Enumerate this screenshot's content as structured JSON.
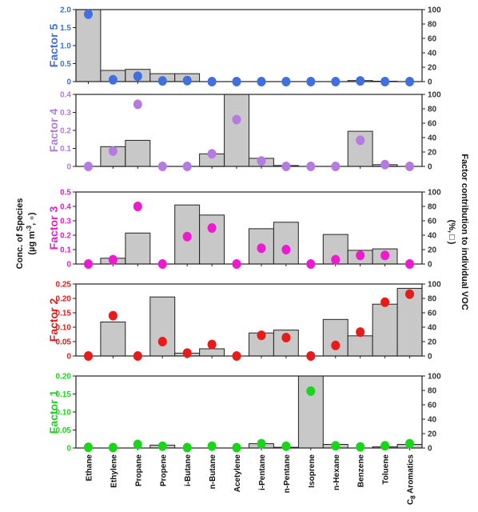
{
  "chart_data": {
    "type": "bar",
    "categories": [
      "Ethane",
      "Ethylene",
      "Propane",
      "Propene",
      "i-Butane",
      "n-Butane",
      "Acetylene",
      "i-Pentane",
      "n-Pentane",
      "Isoprene",
      "n-Hexane",
      "Benzene",
      "Toluene",
      "C8 Aromatics"
    ],
    "category_labels": [
      "Ethane",
      "Ethylene",
      "Propane",
      "Propene",
      "i-Butane",
      "n-Butane",
      "Acetylene",
      "i-Pentane",
      "n-Pentane",
      "Isoprene",
      "n-Hexane",
      "Benzene",
      "Toluene",
      "C"
    ],
    "c8_subscript": "8",
    "c8_rest": " Aromatics",
    "left_axis_title": "Conc. of Species",
    "left_axis_title_units": "(µg m",
    "left_axis_title_units_sup": "-3",
    "left_axis_title_units_rest": ", ",
    "left_axis_title_units_close": ")",
    "right_axis_title": "Factor contribution to individual VOC",
    "right_axis_title_units": "(%,",
    "right_axis_title_units_close": ")",
    "panels": [
      {
        "name": "Factor 5",
        "color": "#3f6fe0",
        "left_ylim": [
          0,
          2.0
        ],
        "left_ticks": [
          "0",
          "0.5",
          "1.0",
          "1.5",
          "2.0"
        ],
        "left_tick_values": [
          0,
          0.5,
          1.0,
          1.5,
          2.0
        ],
        "right_ticks": [
          "0",
          "20",
          "40",
          "60",
          "80",
          "100"
        ],
        "bars": [
          2.0,
          0.31,
          0.34,
          0.22,
          0.22,
          0,
          0,
          0,
          0,
          0,
          0,
          0.03,
          0.01,
          0
        ],
        "points": [
          1.87,
          0.05,
          0.15,
          0.02,
          0.03,
          0,
          0,
          0,
          0,
          0,
          0,
          0.02,
          0,
          0
        ]
      },
      {
        "name": "Factor 4",
        "color": "#b57be0",
        "left_ylim": [
          0,
          0.4
        ],
        "left_ticks": [
          "0",
          "0.1",
          "0.2",
          "0.3",
          "0.4"
        ],
        "left_tick_values": [
          0,
          0.1,
          0.2,
          0.3,
          0.4
        ],
        "right_ticks": [
          "0",
          "20",
          "40",
          "60",
          "80",
          "100"
        ],
        "bars": [
          0,
          0.11,
          0.145,
          0,
          0,
          0.07,
          0.4,
          0.045,
          0.005,
          0,
          0,
          0.195,
          0.01,
          0
        ],
        "points": [
          0,
          0.085,
          0.345,
          0,
          0,
          0.07,
          0.26,
          0.03,
          0,
          0,
          0,
          0.145,
          0.01,
          0
        ]
      },
      {
        "name": "Factor 3",
        "color": "#ee1ad0",
        "left_ylim": [
          0,
          0.5
        ],
        "left_ticks": [
          "0",
          "0.1",
          "0.2",
          "0.3",
          "0.4",
          "0.5"
        ],
        "left_tick_values": [
          0,
          0.1,
          0.2,
          0.3,
          0.4,
          0.5
        ],
        "right_ticks": [
          "0",
          "20",
          "40",
          "60",
          "80",
          "100"
        ],
        "bars": [
          0,
          0.04,
          0.215,
          0,
          0.41,
          0.34,
          0,
          0.245,
          0.29,
          0,
          0.205,
          0.095,
          0.105,
          0
        ],
        "points": [
          0,
          0.03,
          0.4,
          0,
          0.19,
          0.25,
          0,
          0.11,
          0.1,
          0,
          0.03,
          0.06,
          0.06,
          0
        ]
      },
      {
        "name": "Factor 2",
        "color": "#e81a1a",
        "left_ylim": [
          0,
          0.25
        ],
        "left_ticks": [
          "0",
          "0.05",
          "0.10",
          "0.15",
          "0.20",
          "0.25"
        ],
        "left_tick_values": [
          0,
          0.05,
          0.1,
          0.15,
          0.2,
          0.25
        ],
        "right_ticks": [
          "0",
          "20",
          "40",
          "60",
          "80",
          "100"
        ],
        "bars": [
          0,
          0.118,
          0,
          0.205,
          0.01,
          0.025,
          0,
          0.08,
          0.09,
          0,
          0.127,
          0.07,
          0.18,
          0.235
        ],
        "points": [
          0,
          0.14,
          0,
          0.05,
          0.01,
          0.04,
          0,
          0.072,
          0.064,
          0,
          0.037,
          0.083,
          0.187,
          0.215
        ]
      },
      {
        "name": "Factor 1",
        "color": "#1ad61a",
        "left_ylim": [
          0,
          0.2
        ],
        "left_ticks": [
          "0",
          "0.05",
          "0.10",
          "0.15",
          "0.20"
        ],
        "left_tick_values": [
          0,
          0.05,
          0.1,
          0.15,
          0.2
        ],
        "right_ticks": [
          "0",
          "20",
          "40",
          "60",
          "80",
          "100"
        ],
        "bars": [
          0,
          0,
          0,
          0.008,
          0,
          0,
          0,
          0.012,
          0.002,
          0.2,
          0.01,
          0,
          0.003,
          0.01
        ],
        "points": [
          0.002,
          0.001,
          0.01,
          0.005,
          0.001,
          0.005,
          0.001,
          0.012,
          0.005,
          0.158,
          0.006,
          0.003,
          0.006,
          0.012
        ]
      }
    ]
  }
}
